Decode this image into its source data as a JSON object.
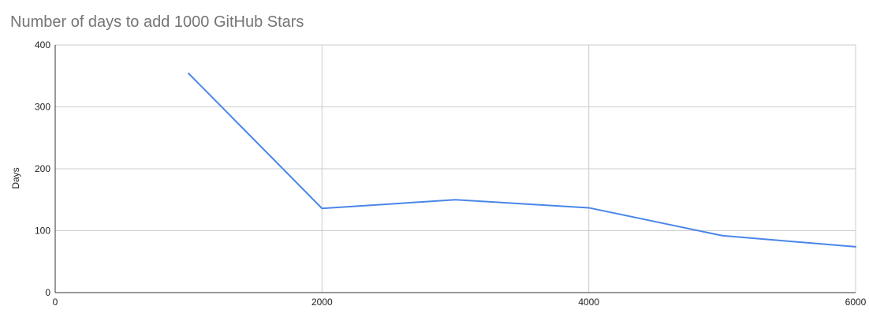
{
  "chart_data": {
    "type": "line",
    "title": "Number of days to add 1000 GitHub Stars",
    "xlabel": "",
    "ylabel": "Days",
    "xlim": [
      0,
      6000
    ],
    "ylim": [
      0,
      400
    ],
    "xticks": [
      0,
      2000,
      4000,
      6000
    ],
    "yticks": [
      0,
      100,
      200,
      300,
      400
    ],
    "grid": true,
    "legend": "none",
    "series": [
      {
        "color": "#4a86e8",
        "x": [
          1000,
          2000,
          3000,
          4000,
          5000,
          6000
        ],
        "y": [
          354,
          136,
          150,
          137,
          92,
          74
        ]
      }
    ]
  }
}
